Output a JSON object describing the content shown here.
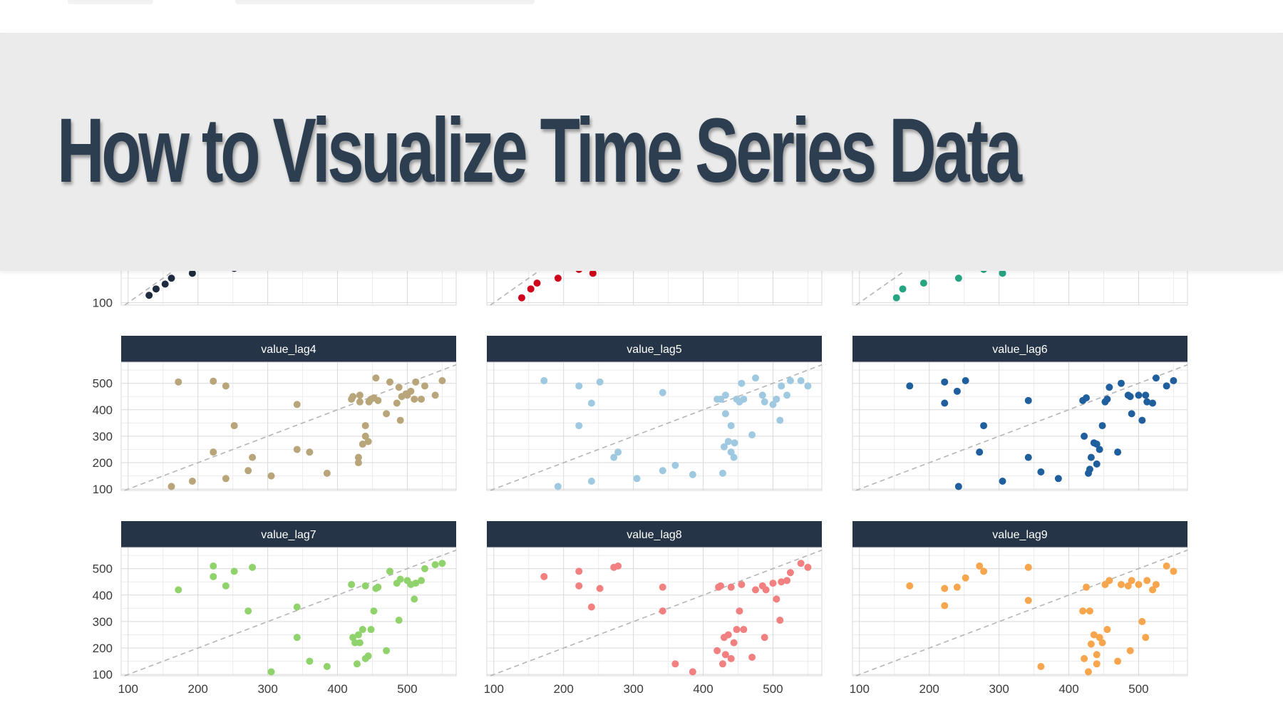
{
  "title": "How to Visualize Time Series Data",
  "colors": {
    "banner_bg": "#ebebeb",
    "title": "#2c3e50",
    "strip_bg": "#253446",
    "strip_text": "#ffffff",
    "grid": "#d9d9d9",
    "diagonal": "#b5b5b5"
  },
  "chart_data": {
    "type": "scatter",
    "layout": "facet-grid 3x3",
    "x_ticks": [
      100,
      200,
      300,
      400,
      500
    ],
    "y_ticks": [
      100,
      200,
      300,
      400,
      500
    ],
    "xlim": [
      90,
      570
    ],
    "ylim": [
      95,
      580
    ],
    "reference_line": "y = x (dashed)",
    "panels": [
      {
        "name": "",
        "color": "#1f2b3e",
        "points": [
          [
            130,
            115
          ],
          [
            140,
            128
          ],
          [
            153,
            138
          ],
          [
            162,
            150
          ],
          [
            192,
            160
          ],
          [
            242,
            190
          ],
          [
            252,
            170
          ],
          [
            172,
            210
          ],
          [
            278,
            215
          ]
        ]
      },
      {
        "name": "",
        "color": "#d0021b",
        "points": [
          [
            140,
            110
          ],
          [
            153,
            128
          ],
          [
            162,
            140
          ],
          [
            192,
            150
          ],
          [
            222,
            168
          ],
          [
            242,
            160
          ],
          [
            305,
            190
          ],
          [
            272,
            215
          ],
          [
            252,
            215
          ]
        ]
      },
      {
        "name": "",
        "color": "#27a582",
        "points": [
          [
            153,
            110
          ],
          [
            162,
            128
          ],
          [
            192,
            140
          ],
          [
            242,
            150
          ],
          [
            278,
            168
          ],
          [
            305,
            160
          ],
          [
            385,
            190
          ],
          [
            222,
            215
          ],
          [
            342,
            215
          ]
        ]
      },
      {
        "name": "value_lag4",
        "color": "#b8a57a",
        "points": [
          [
            172,
            505
          ],
          [
            222,
            508
          ],
          [
            240,
            490
          ],
          [
            252,
            340
          ],
          [
            162,
            110
          ],
          [
            192,
            130
          ],
          [
            222,
            240
          ],
          [
            240,
            140
          ],
          [
            272,
            170
          ],
          [
            278,
            220
          ],
          [
            305,
            150
          ],
          [
            342,
            420
          ],
          [
            342,
            250
          ],
          [
            360,
            240
          ],
          [
            385,
            160
          ],
          [
            420,
            440
          ],
          [
            422,
            450
          ],
          [
            430,
            200
          ],
          [
            430,
            220
          ],
          [
            432,
            430
          ],
          [
            436,
            270
          ],
          [
            440,
            300
          ],
          [
            440,
            340
          ],
          [
            444,
            280
          ],
          [
            448,
            440
          ],
          [
            452,
            445
          ],
          [
            455,
            520
          ],
          [
            458,
            435
          ],
          [
            470,
            385
          ],
          [
            475,
            505
          ],
          [
            485,
            425
          ],
          [
            488,
            485
          ],
          [
            490,
            360
          ],
          [
            492,
            450
          ],
          [
            500,
            455
          ],
          [
            505,
            470
          ],
          [
            510,
            440
          ],
          [
            512,
            505
          ],
          [
            520,
            440
          ],
          [
            525,
            490
          ],
          [
            540,
            455
          ],
          [
            550,
            510
          ],
          [
            432,
            455
          ],
          [
            445,
            430
          ],
          [
            498,
            460
          ]
        ]
      },
      {
        "name": "value_lag5",
        "color": "#9ec9e0",
        "points": [
          [
            172,
            510
          ],
          [
            222,
            490
          ],
          [
            252,
            505
          ],
          [
            240,
            425
          ],
          [
            222,
            340
          ],
          [
            192,
            110
          ],
          [
            240,
            130
          ],
          [
            272,
            220
          ],
          [
            278,
            240
          ],
          [
            305,
            140
          ],
          [
            342,
            465
          ],
          [
            342,
            170
          ],
          [
            360,
            190
          ],
          [
            385,
            155
          ],
          [
            420,
            440
          ],
          [
            425,
            440
          ],
          [
            428,
            160
          ],
          [
            430,
            260
          ],
          [
            432,
            455
          ],
          [
            436,
            280
          ],
          [
            440,
            240
          ],
          [
            440,
            340
          ],
          [
            444,
            220
          ],
          [
            448,
            440
          ],
          [
            452,
            430
          ],
          [
            455,
            500
          ],
          [
            458,
            440
          ],
          [
            470,
            305
          ],
          [
            475,
            520
          ],
          [
            485,
            455
          ],
          [
            488,
            430
          ],
          [
            500,
            420
          ],
          [
            505,
            440
          ],
          [
            510,
            360
          ],
          [
            512,
            490
          ],
          [
            520,
            455
          ],
          [
            525,
            510
          ],
          [
            540,
            510
          ],
          [
            550,
            490
          ],
          [
            432,
            385
          ],
          [
            445,
            275
          ]
        ]
      },
      {
        "name": "value_lag6",
        "color": "#1f5f9e",
        "points": [
          [
            172,
            490
          ],
          [
            222,
            505
          ],
          [
            240,
            470
          ],
          [
            252,
            510
          ],
          [
            222,
            425
          ],
          [
            278,
            340
          ],
          [
            272,
            240
          ],
          [
            242,
            110
          ],
          [
            305,
            130
          ],
          [
            342,
            435
          ],
          [
            342,
            220
          ],
          [
            360,
            165
          ],
          [
            385,
            140
          ],
          [
            420,
            435
          ],
          [
            422,
            300
          ],
          [
            425,
            445
          ],
          [
            428,
            160
          ],
          [
            430,
            175
          ],
          [
            432,
            220
          ],
          [
            436,
            275
          ],
          [
            440,
            270
          ],
          [
            440,
            195
          ],
          [
            444,
            250
          ],
          [
            448,
            340
          ],
          [
            452,
            430
          ],
          [
            455,
            440
          ],
          [
            458,
            485
          ],
          [
            470,
            240
          ],
          [
            475,
            500
          ],
          [
            485,
            455
          ],
          [
            488,
            450
          ],
          [
            490,
            385
          ],
          [
            500,
            455
          ],
          [
            505,
            360
          ],
          [
            510,
            455
          ],
          [
            512,
            430
          ],
          [
            520,
            425
          ],
          [
            525,
            520
          ],
          [
            540,
            490
          ],
          [
            550,
            510
          ]
        ]
      },
      {
        "name": "value_lag7",
        "color": "#90d36c",
        "points": [
          [
            172,
            420
          ],
          [
            222,
            510
          ],
          [
            222,
            470
          ],
          [
            240,
            435
          ],
          [
            252,
            490
          ],
          [
            272,
            340
          ],
          [
            278,
            505
          ],
          [
            305,
            110
          ],
          [
            342,
            355
          ],
          [
            342,
            240
          ],
          [
            360,
            150
          ],
          [
            385,
            130
          ],
          [
            420,
            440
          ],
          [
            422,
            240
          ],
          [
            425,
            220
          ],
          [
            428,
            140
          ],
          [
            430,
            250
          ],
          [
            432,
            220
          ],
          [
            436,
            270
          ],
          [
            440,
            160
          ],
          [
            440,
            435
          ],
          [
            444,
            170
          ],
          [
            448,
            270
          ],
          [
            452,
            340
          ],
          [
            455,
            425
          ],
          [
            458,
            430
          ],
          [
            470,
            190
          ],
          [
            475,
            490
          ],
          [
            485,
            445
          ],
          [
            488,
            305
          ],
          [
            490,
            460
          ],
          [
            500,
            455
          ],
          [
            505,
            440
          ],
          [
            510,
            385
          ],
          [
            512,
            445
          ],
          [
            520,
            455
          ],
          [
            525,
            500
          ],
          [
            540,
            515
          ],
          [
            550,
            520
          ]
        ]
      },
      {
        "name": "value_lag8",
        "color": "#f28080",
        "points": [
          [
            172,
            470
          ],
          [
            222,
            490
          ],
          [
            222,
            435
          ],
          [
            240,
            355
          ],
          [
            252,
            425
          ],
          [
            272,
            505
          ],
          [
            278,
            510
          ],
          [
            342,
            430
          ],
          [
            342,
            340
          ],
          [
            360,
            140
          ],
          [
            385,
            110
          ],
          [
            420,
            190
          ],
          [
            422,
            430
          ],
          [
            425,
            435
          ],
          [
            428,
            140
          ],
          [
            430,
            240
          ],
          [
            432,
            175
          ],
          [
            436,
            250
          ],
          [
            440,
            160
          ],
          [
            440,
            430
          ],
          [
            444,
            220
          ],
          [
            448,
            270
          ],
          [
            452,
            340
          ],
          [
            455,
            440
          ],
          [
            458,
            270
          ],
          [
            470,
            165
          ],
          [
            475,
            420
          ],
          [
            485,
            435
          ],
          [
            488,
            240
          ],
          [
            490,
            420
          ],
          [
            500,
            445
          ],
          [
            505,
            385
          ],
          [
            510,
            305
          ],
          [
            512,
            450
          ],
          [
            520,
            455
          ],
          [
            525,
            485
          ],
          [
            540,
            520
          ],
          [
            550,
            505
          ]
        ]
      },
      {
        "name": "value_lag9",
        "color": "#f7a64d",
        "points": [
          [
            172,
            435
          ],
          [
            222,
            360
          ],
          [
            222,
            425
          ],
          [
            240,
            430
          ],
          [
            252,
            465
          ],
          [
            272,
            510
          ],
          [
            278,
            490
          ],
          [
            342,
            505
          ],
          [
            342,
            380
          ],
          [
            360,
            130
          ],
          [
            420,
            340
          ],
          [
            422,
            160
          ],
          [
            425,
            430
          ],
          [
            428,
            110
          ],
          [
            430,
            340
          ],
          [
            432,
            215
          ],
          [
            436,
            250
          ],
          [
            440,
            175
          ],
          [
            440,
            140
          ],
          [
            444,
            240
          ],
          [
            448,
            220
          ],
          [
            452,
            440
          ],
          [
            455,
            270
          ],
          [
            458,
            455
          ],
          [
            470,
            150
          ],
          [
            475,
            440
          ],
          [
            485,
            435
          ],
          [
            488,
            190
          ],
          [
            490,
            455
          ],
          [
            500,
            440
          ],
          [
            505,
            300
          ],
          [
            510,
            240
          ],
          [
            512,
            455
          ],
          [
            520,
            420
          ],
          [
            525,
            440
          ],
          [
            540,
            510
          ],
          [
            550,
            490
          ]
        ]
      }
    ]
  }
}
